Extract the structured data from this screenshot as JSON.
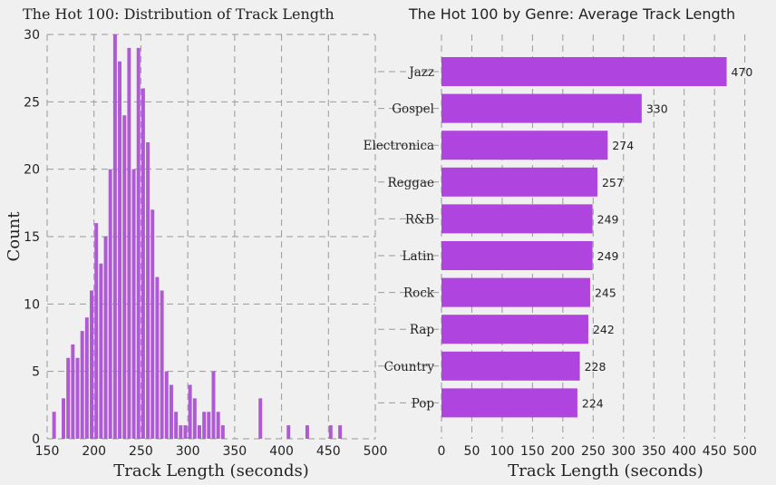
{
  "chart_data": [
    {
      "type": "bar",
      "subtype": "histogram",
      "title": "The Hot 100: Distribution of Track Length",
      "xlabel": "Track Length (seconds)",
      "ylabel": "Count",
      "xlim": [
        150,
        500
      ],
      "ylim": [
        0,
        30
      ],
      "xticks": [
        "150",
        "200",
        "250",
        "300",
        "350",
        "400",
        "450",
        "500"
      ],
      "yticks": [
        "0",
        "5",
        "10",
        "15",
        "20",
        "25",
        "30"
      ],
      "grid": true,
      "bar_color": "#b059d6",
      "bin_width": 5,
      "bins": [
        {
          "x": 155,
          "count": 2
        },
        {
          "x": 165,
          "count": 3
        },
        {
          "x": 170,
          "count": 6
        },
        {
          "x": 175,
          "count": 7
        },
        {
          "x": 180,
          "count": 6
        },
        {
          "x": 185,
          "count": 8
        },
        {
          "x": 190,
          "count": 9
        },
        {
          "x": 195,
          "count": 11
        },
        {
          "x": 200,
          "count": 16
        },
        {
          "x": 205,
          "count": 13
        },
        {
          "x": 210,
          "count": 15
        },
        {
          "x": 215,
          "count": 20
        },
        {
          "x": 220,
          "count": 30
        },
        {
          "x": 225,
          "count": 28
        },
        {
          "x": 230,
          "count": 24
        },
        {
          "x": 235,
          "count": 29
        },
        {
          "x": 240,
          "count": 20
        },
        {
          "x": 245,
          "count": 29
        },
        {
          "x": 250,
          "count": 26
        },
        {
          "x": 255,
          "count": 22
        },
        {
          "x": 260,
          "count": 17
        },
        {
          "x": 265,
          "count": 12
        },
        {
          "x": 270,
          "count": 11
        },
        {
          "x": 275,
          "count": 5
        },
        {
          "x": 280,
          "count": 4
        },
        {
          "x": 285,
          "count": 2
        },
        {
          "x": 290,
          "count": 1
        },
        {
          "x": 295,
          "count": 1
        },
        {
          "x": 300,
          "count": 4
        },
        {
          "x": 305,
          "count": 3
        },
        {
          "x": 310,
          "count": 1
        },
        {
          "x": 315,
          "count": 2
        },
        {
          "x": 320,
          "count": 2
        },
        {
          "x": 325,
          "count": 5
        },
        {
          "x": 330,
          "count": 2
        },
        {
          "x": 335,
          "count": 1
        },
        {
          "x": 375,
          "count": 3
        },
        {
          "x": 405,
          "count": 1
        },
        {
          "x": 425,
          "count": 1
        },
        {
          "x": 450,
          "count": 1
        },
        {
          "x": 460,
          "count": 1
        }
      ]
    },
    {
      "type": "bar",
      "orientation": "horizontal",
      "title": "The Hot 100 by Genre: Average Track Length",
      "xlabel": "Track Length (seconds)",
      "xlim": [
        0,
        520
      ],
      "xticks": [
        "0",
        "50",
        "100",
        "150",
        "200",
        "250",
        "300",
        "350",
        "400",
        "450",
        "500"
      ],
      "grid": true,
      "bar_color": "#b044df",
      "categories": [
        "Jazz",
        "Gospel",
        "Electronica",
        "Reggae",
        "R&B",
        "Latin",
        "Rock",
        "Rap",
        "Country",
        "Pop"
      ],
      "values": [
        470,
        330,
        274,
        257,
        249,
        249,
        245,
        242,
        228,
        224
      ],
      "data_labels": [
        "470",
        "330",
        "274",
        "257",
        "249",
        "249",
        "245",
        "242",
        "228",
        "224"
      ]
    }
  ]
}
